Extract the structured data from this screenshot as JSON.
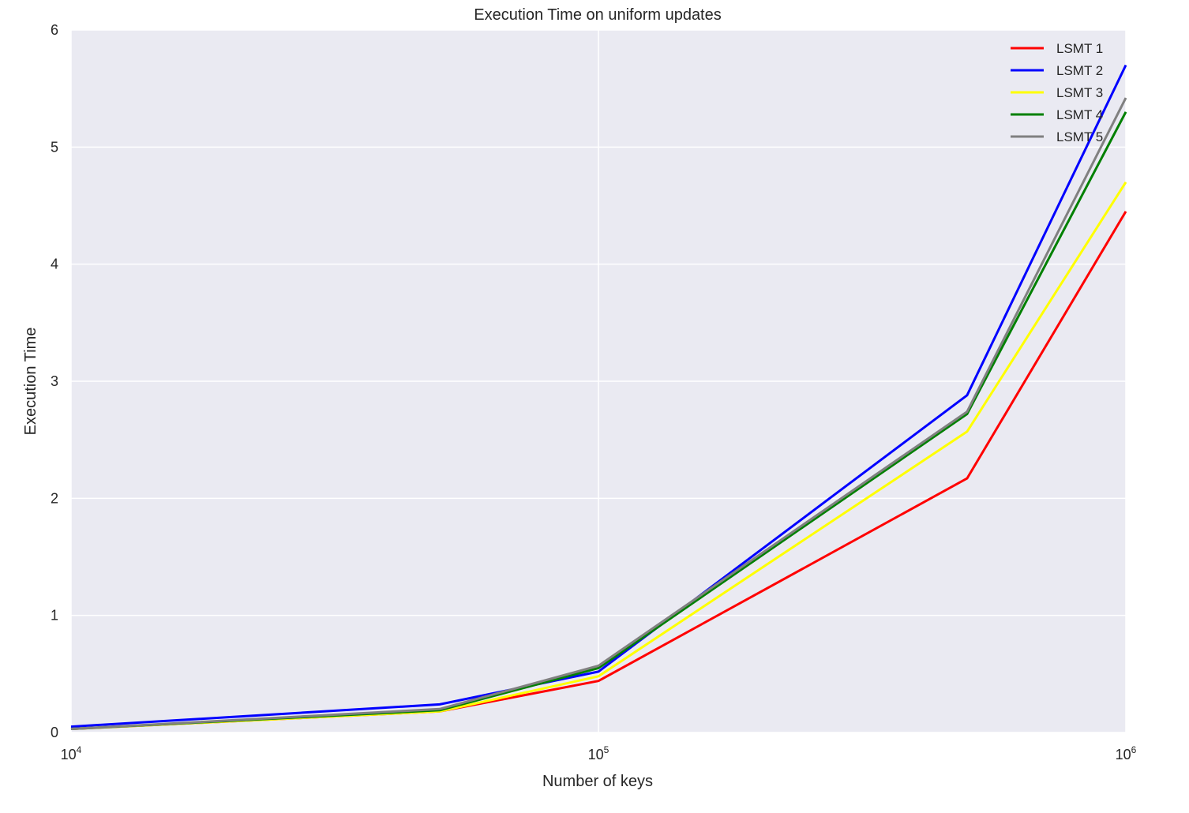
{
  "chart_data": {
    "type": "line",
    "title": "Execution Time on uniform updates",
    "xlabel": "Number of keys",
    "ylabel": "Execution Time",
    "xscale": "log",
    "xlim": [
      10000,
      1000000
    ],
    "ylim": [
      0,
      6
    ],
    "grid": true,
    "legend_position": "top-right",
    "x": [
      10000,
      50000,
      100000,
      500000,
      1000000
    ],
    "x_ticks": [
      {
        "value": 10000,
        "base": "10",
        "exp": "4"
      },
      {
        "value": 100000,
        "base": "10",
        "exp": "5"
      },
      {
        "value": 1000000,
        "base": "10",
        "exp": "6"
      }
    ],
    "y_ticks": [
      0,
      1,
      2,
      3,
      4,
      5,
      6
    ],
    "series": [
      {
        "name": "LSMT 1",
        "color": "#ff0000",
        "values": [
          0.03,
          0.18,
          0.44,
          2.17,
          4.45
        ]
      },
      {
        "name": "LSMT 2",
        "color": "#0000ff",
        "values": [
          0.05,
          0.24,
          0.52,
          2.88,
          5.7
        ]
      },
      {
        "name": "LSMT 3",
        "color": "#ffff00",
        "values": [
          0.03,
          0.18,
          0.48,
          2.57,
          4.7
        ]
      },
      {
        "name": "LSMT 4",
        "color": "#008000",
        "values": [
          0.03,
          0.19,
          0.55,
          2.72,
          5.3
        ]
      },
      {
        "name": "LSMT 5",
        "color": "#808080",
        "values": [
          0.03,
          0.2,
          0.57,
          2.74,
          5.42
        ]
      }
    ],
    "colors": {
      "plot_bg": "#eaeaf2",
      "grid": "#ffffff",
      "text": "#262626"
    }
  }
}
